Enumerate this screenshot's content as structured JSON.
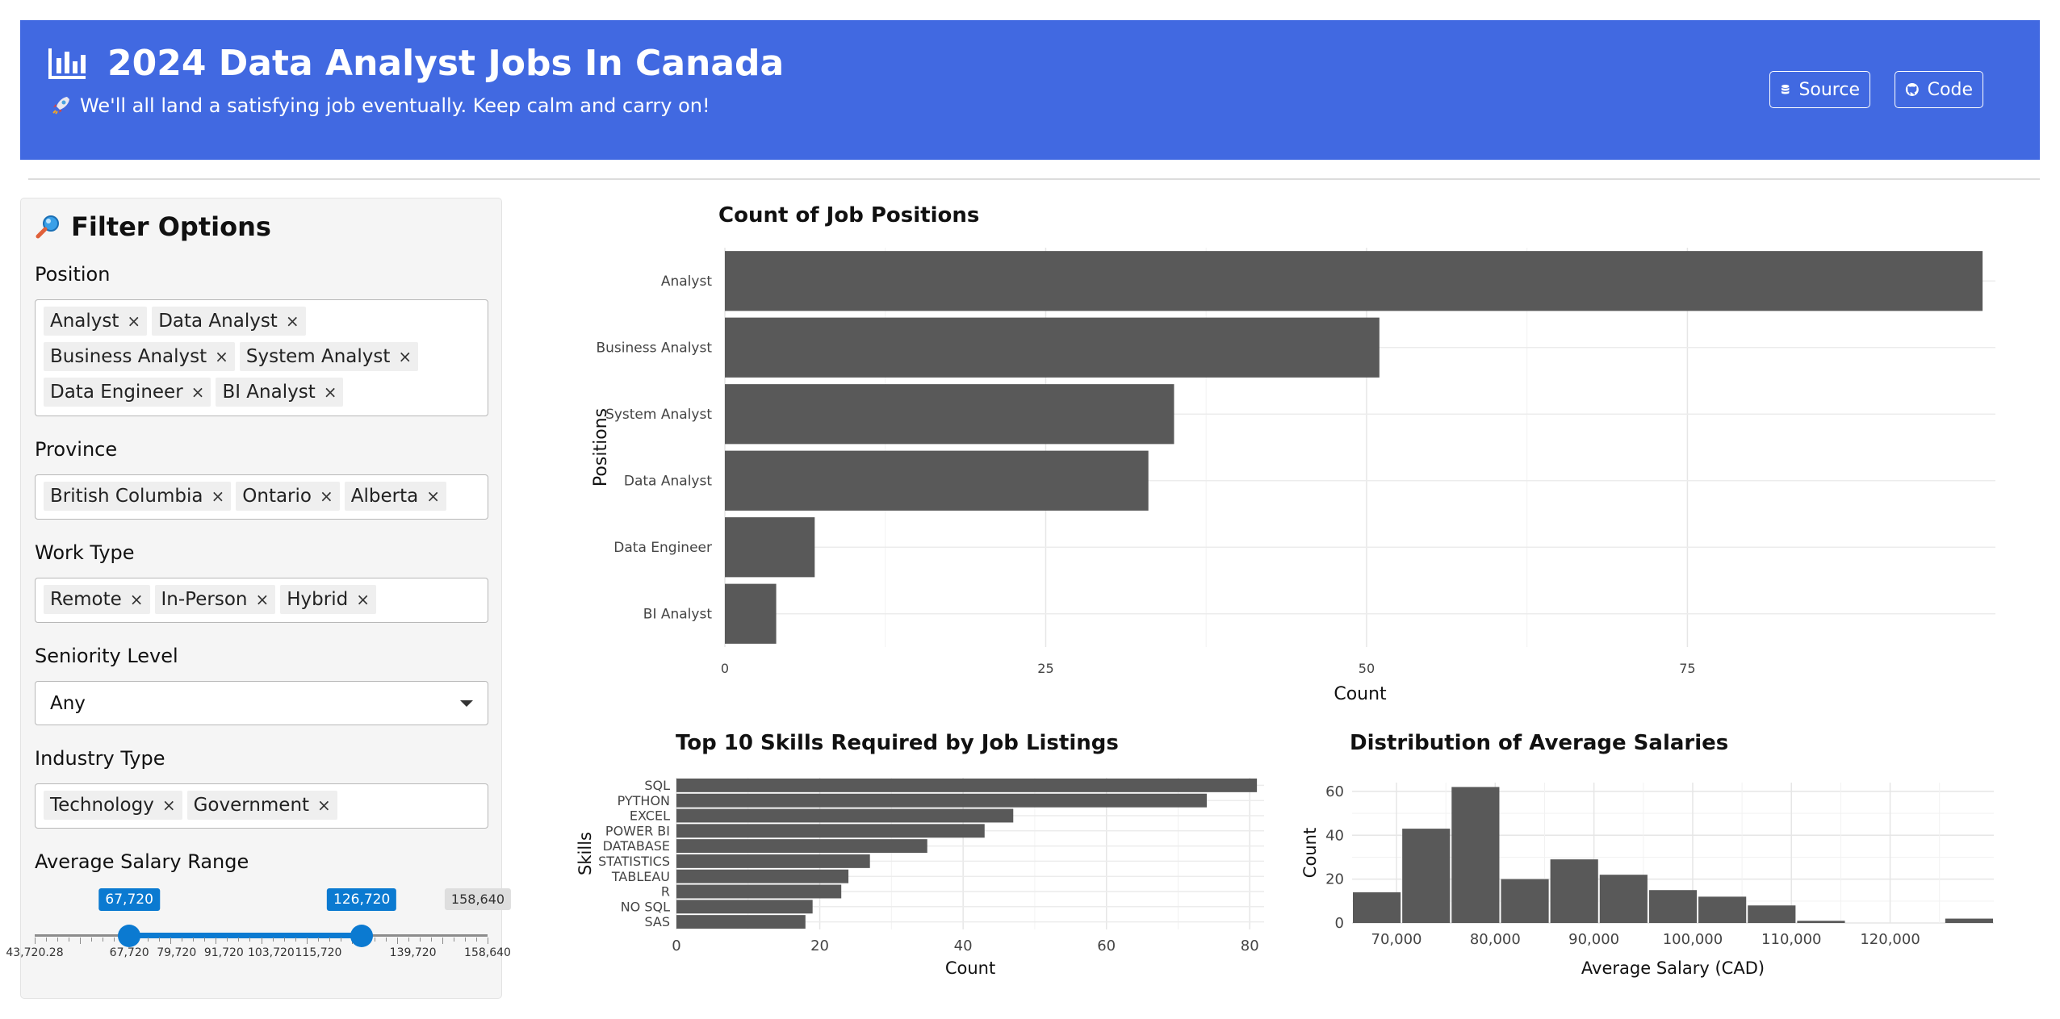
{
  "header": {
    "title": "2024 Data Analyst Jobs In Canada",
    "subtitle": "We'll all land a satisfying job eventually. Keep calm and carry on!",
    "source_label": "Source",
    "code_label": "Code",
    "bg_color": "#4169e1"
  },
  "sidebar": {
    "title": "Filter Options",
    "position_label": "Position",
    "positions": [
      "Analyst",
      "Data Analyst",
      "Business Analyst",
      "System Analyst",
      "Data Engineer",
      "BI Analyst"
    ],
    "province_label": "Province",
    "provinces": [
      "British Columbia",
      "Ontario",
      "Alberta"
    ],
    "worktype_label": "Work Type",
    "worktypes": [
      "Remote",
      "In-Person",
      "Hybrid"
    ],
    "seniority_label": "Seniority Level",
    "seniority_value": "Any",
    "industry_label": "Industry Type",
    "industries": [
      "Technology",
      "Government"
    ],
    "salary_label": "Average Salary Range",
    "salary_slider": {
      "min": 43720.28,
      "max": 158640,
      "low": 67720,
      "high": 126720,
      "low_label": "67,720",
      "high_label": "126,720",
      "max_label": "158,640",
      "ticks": [
        {
          "value": 43720.28,
          "label": "43,720.28"
        },
        {
          "value": 67720,
          "label": "67,720"
        },
        {
          "value": 79720,
          "label": "79,720"
        },
        {
          "value": 91720,
          "label": "91,720"
        },
        {
          "value": 103720,
          "label": "103,720"
        },
        {
          "value": 115720,
          "label": "115,720"
        },
        {
          "value": 139720,
          "label": "139,720"
        },
        {
          "value": 158640,
          "label": "158,640"
        }
      ]
    }
  },
  "chart_data": [
    {
      "type": "bar",
      "orientation": "horizontal",
      "title": "Count of Job Positions",
      "xlabel": "Count",
      "ylabel": "Positions",
      "categories": [
        "Analyst",
        "Business Analyst",
        "System Analyst",
        "Data Analyst",
        "Data Engineer",
        "BI Analyst"
      ],
      "values": [
        98,
        51,
        35,
        33,
        7,
        4
      ],
      "xlim": [
        0,
        99
      ],
      "xticks": [
        0,
        25,
        50,
        75
      ],
      "grid": true,
      "bar_color": "#595959"
    },
    {
      "type": "bar",
      "orientation": "horizontal",
      "title": "Top 10 Skills Required by Job Listings",
      "xlabel": "Count",
      "ylabel": "Skills",
      "categories": [
        "SQL",
        "PYTHON",
        "EXCEL",
        "POWER BI",
        "DATABASE",
        "STATISTICS",
        "TABLEAU",
        "R",
        "NO SQL",
        "SAS"
      ],
      "values": [
        81,
        74,
        47,
        43,
        35,
        27,
        24,
        23,
        19,
        18
      ],
      "xlim": [
        0,
        82
      ],
      "xticks": [
        0,
        20,
        40,
        60,
        80
      ],
      "grid": true,
      "bar_color": "#595959"
    },
    {
      "type": "bar",
      "subtype": "histogram",
      "title": "Distribution of Average Salaries",
      "xlabel": "Average Salary (CAD)",
      "ylabel": "Count",
      "x": [
        68000,
        73000,
        78000,
        83000,
        88000,
        93000,
        98000,
        103000,
        108000,
        113000,
        118000,
        123000,
        128000
      ],
      "values": [
        14,
        43,
        62,
        20,
        29,
        22,
        15,
        12,
        8,
        1,
        0,
        0,
        2
      ],
      "bin_width": 5000,
      "xlim": [
        65500,
        130500
      ],
      "ylim": [
        0,
        64
      ],
      "xticks": [
        {
          "value": 70000,
          "label": "70,000"
        },
        {
          "value": 80000,
          "label": "80,000"
        },
        {
          "value": 90000,
          "label": "90,000"
        },
        {
          "value": 100000,
          "label": "100,000"
        },
        {
          "value": 110000,
          "label": "110,000"
        },
        {
          "value": 120000,
          "label": "120,000"
        }
      ],
      "yticks": [
        0,
        20,
        40,
        60
      ],
      "grid": true,
      "bar_color": "#595959"
    }
  ]
}
